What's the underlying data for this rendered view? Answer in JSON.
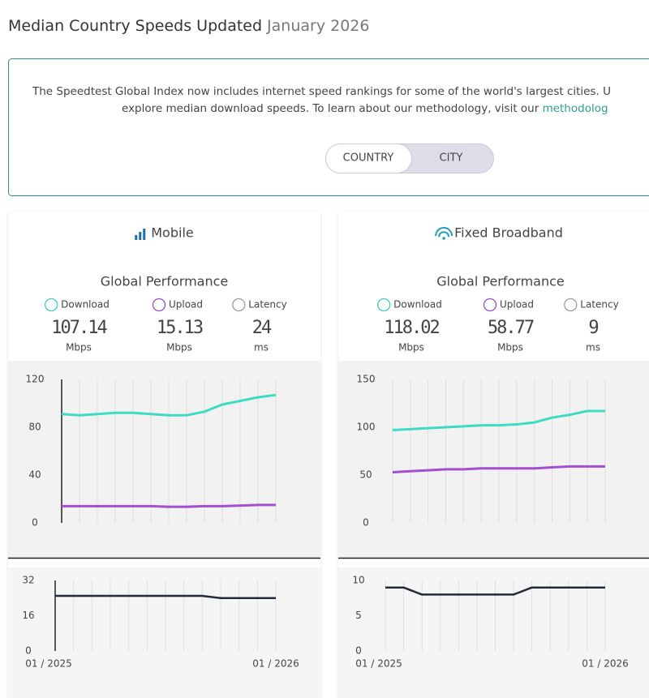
{
  "header": {
    "title": "Median Country Speeds Updated",
    "date": "January 2026"
  },
  "intro": {
    "line1": "The Speedtest Global Index now includes internet speed rankings for some of the world's largest cities. U",
    "line2": "explore median download speeds. To learn about our methodology, visit our ",
    "link": "methodolog"
  },
  "toggle": [
    "COUNTRY",
    "CITY"
  ],
  "panels": [
    {
      "title": "Mobile",
      "subtitle": "Global Performance",
      "stats": [
        {
          "label": "Download",
          "value": 107.14,
          "unit": "Mbps",
          "color": "#3ec9c0"
        },
        {
          "label": "Upload",
          "value": 15.13,
          "unit": "Mbps",
          "color": "#9b4dca"
        },
        {
          "label": "Latency",
          "value": 24,
          "unit": "ms",
          "color": "#9a9a9a"
        }
      ],
      "charts": [
        {
          "type": "line",
          "ylim": [
            0,
            120
          ],
          "yticks": [
            0,
            40,
            80,
            120
          ],
          "axis_line": true,
          "series": [
            {
              "color": "#3ddbc4",
              "values": [
                91,
                90,
                91,
                92,
                92,
                91,
                90,
                90,
                93,
                99,
                102,
                105,
                107
              ]
            },
            {
              "color": "#a24fd0",
              "values": [
                14,
                14,
                14,
                14,
                14,
                14,
                13.5,
                13.5,
                14,
                14,
                14.5,
                15,
                15
              ]
            }
          ]
        },
        {
          "type": "line",
          "ylim": [
            0,
            32
          ],
          "yticks": [
            0,
            16,
            32
          ],
          "axis_line": true,
          "categories": [
            "01 / 2025",
            null,
            null,
            null,
            null,
            null,
            null,
            null,
            null,
            null,
            null,
            null,
            "01 / 2026"
          ],
          "series": [
            {
              "color": "#1f2a3a",
              "values": [
                25,
                25,
                25,
                25,
                25,
                25,
                25,
                25,
                25,
                24,
                24,
                24,
                24
              ]
            }
          ]
        }
      ]
    },
    {
      "title": "Fixed Broadband",
      "subtitle": "Global Performance",
      "stats": [
        {
          "label": "Download",
          "value": 118.02,
          "unit": "Mbps",
          "color": "#3ec9c0"
        },
        {
          "label": "Upload",
          "value": 58.77,
          "unit": "Mbps",
          "color": "#9b4dca"
        },
        {
          "label": "Latency",
          "value": 9,
          "unit": "ms",
          "color": "#9a9a9a"
        }
      ],
      "charts": [
        {
          "type": "line",
          "ylim": [
            0,
            150
          ],
          "yticks": [
            0,
            50,
            100,
            150
          ],
          "axis_line": false,
          "series": [
            {
              "color": "#3ddbc4",
              "values": [
                97,
                98,
                99,
                100,
                101,
                102,
                102,
                103,
                105,
                110,
                113,
                117,
                117
              ]
            },
            {
              "color": "#a24fd0",
              "values": [
                53,
                54,
                55,
                56,
                56,
                57,
                57,
                57,
                57,
                58,
                59,
                59,
                59
              ]
            }
          ]
        },
        {
          "type": "line",
          "ylim": [
            0,
            10
          ],
          "yticks": [
            0,
            5,
            10
          ],
          "axis_line": false,
          "categories": [
            "01 / 2025",
            null,
            null,
            null,
            null,
            null,
            null,
            null,
            null,
            null,
            null,
            null,
            "01 / 2026"
          ],
          "series": [
            {
              "color": "#1f2a3a",
              "values": [
                9,
                9,
                8,
                8,
                8,
                8,
                8,
                8,
                9,
                9,
                9,
                9,
                9
              ]
            }
          ]
        }
      ]
    }
  ]
}
